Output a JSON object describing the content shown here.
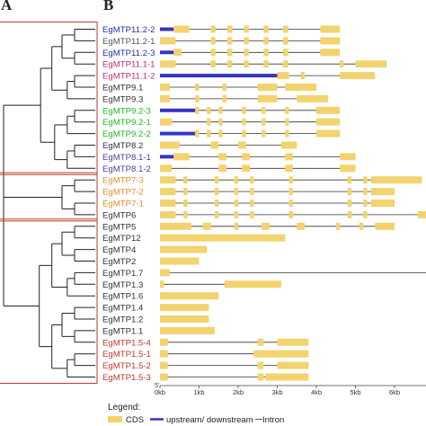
{
  "panels": {
    "a": "A",
    "b": "B"
  },
  "colors": {
    "cds": "#f3d36e",
    "utr": "#3434c4",
    "intron": "#333333",
    "clade_box": "#c0392b",
    "tree": "#222222"
  },
  "genes": [
    {
      "name": "EgMTP11.2-2",
      "color": "#2b2bb0",
      "len": 4.6,
      "features": [
        [
          "utr",
          0,
          0.35
        ],
        [
          "cds",
          0.35,
          0.75
        ],
        [
          "cds",
          1.3,
          1.42
        ],
        [
          "cds",
          1.72,
          1.85
        ],
        [
          "cds",
          2.15,
          2.27
        ],
        [
          "cds",
          2.65,
          2.78
        ],
        [
          "cds",
          3.15,
          3.28
        ],
        [
          "cds",
          4.1,
          4.6
        ]
      ]
    },
    {
      "name": "EgMTP11.2-1",
      "color": "#555555",
      "len": 4.6,
      "features": [
        [
          "cds",
          0,
          0.4
        ],
        [
          "cds",
          1.3,
          1.42
        ],
        [
          "cds",
          1.72,
          1.85
        ],
        [
          "cds",
          2.15,
          2.27
        ],
        [
          "cds",
          2.65,
          2.78
        ],
        [
          "cds",
          3.15,
          3.28
        ],
        [
          "cds",
          4.1,
          4.6
        ]
      ]
    },
    {
      "name": "EgMTP11.2-3",
      "color": "#2b2bb0",
      "len": 4.6,
      "features": [
        [
          "utr",
          0,
          0.35
        ],
        [
          "cds",
          0.35,
          0.55
        ],
        [
          "cds",
          1.3,
          1.42
        ],
        [
          "cds",
          1.72,
          1.85
        ],
        [
          "cds",
          2.15,
          2.27
        ],
        [
          "cds",
          2.65,
          2.78
        ],
        [
          "cds",
          3.15,
          3.28
        ],
        [
          "cds",
          4.1,
          4.6
        ]
      ]
    },
    {
      "name": "EgMTP11.1-1",
      "color": "#c0306a",
      "len": 5.8,
      "features": [
        [
          "cds",
          0,
          0.4
        ],
        [
          "cds",
          1.3,
          1.42
        ],
        [
          "cds",
          1.72,
          1.85
        ],
        [
          "cds",
          2.15,
          2.27
        ],
        [
          "cds",
          2.65,
          2.78
        ],
        [
          "cds",
          3.15,
          3.28
        ],
        [
          "cds",
          4.6,
          4.7
        ],
        [
          "cds",
          5.0,
          5.8
        ]
      ]
    },
    {
      "name": "EgMTP11.1-2",
      "color": "#c0306a",
      "len": 5.5,
      "features": [
        [
          "utr",
          0,
          3.0
        ],
        [
          "cds",
          3.0,
          3.3
        ],
        [
          "cds",
          3.6,
          3.7
        ],
        [
          "cds",
          4.6,
          5.5
        ]
      ]
    },
    {
      "name": "EgMTP9.1",
      "color": "#333333",
      "len": 4.0,
      "features": [
        [
          "cds",
          0,
          0.25
        ],
        [
          "cds",
          0.9,
          1.0
        ],
        [
          "cds",
          1.6,
          1.7
        ],
        [
          "cds",
          2.5,
          3.0
        ],
        [
          "cds",
          3.2,
          4.0
        ]
      ]
    },
    {
      "name": "EgMTP9.3",
      "color": "#333333",
      "len": 4.3,
      "features": [
        [
          "cds",
          0,
          0.25
        ],
        [
          "cds",
          0.9,
          1.0
        ],
        [
          "cds",
          1.6,
          1.7
        ],
        [
          "cds",
          2.5,
          3.0
        ],
        [
          "cds",
          3.5,
          4.3
        ]
      ]
    },
    {
      "name": "EgMTP9.2-3",
      "color": "#22b822",
      "len": 4.6,
      "features": [
        [
          "utr",
          0,
          0.9
        ],
        [
          "cds",
          0.9,
          1.0
        ],
        [
          "cds",
          1.2,
          1.3
        ],
        [
          "cds",
          1.5,
          1.6
        ],
        [
          "cds",
          2.1,
          2.2
        ],
        [
          "cds",
          2.6,
          2.7
        ],
        [
          "cds",
          3.2,
          3.3
        ],
        [
          "cds",
          4.0,
          4.6
        ]
      ]
    },
    {
      "name": "EgMTP9.2-1",
      "color": "#22b822",
      "len": 4.6,
      "features": [
        [
          "cds",
          0,
          0.3
        ],
        [
          "cds",
          1.2,
          1.3
        ],
        [
          "cds",
          1.5,
          1.6
        ],
        [
          "cds",
          2.1,
          2.2
        ],
        [
          "cds",
          2.6,
          2.7
        ],
        [
          "cds",
          3.2,
          3.3
        ],
        [
          "cds",
          4.0,
          4.6
        ]
      ]
    },
    {
      "name": "EgMTP9.2-2",
      "color": "#22b822",
      "len": 4.6,
      "features": [
        [
          "utr",
          0,
          0.9
        ],
        [
          "cds",
          0.9,
          1.0
        ],
        [
          "cds",
          1.2,
          1.3
        ],
        [
          "cds",
          1.5,
          1.6
        ],
        [
          "cds",
          2.1,
          2.2
        ],
        [
          "cds",
          2.6,
          2.7
        ],
        [
          "cds",
          3.2,
          3.3
        ],
        [
          "cds",
          4.0,
          4.6
        ]
      ]
    },
    {
      "name": "EgMTP8.2",
      "color": "#333333",
      "len": 3.5,
      "features": [
        [
          "cds",
          0,
          0.5
        ],
        [
          "cds",
          1.3,
          1.5
        ],
        [
          "cds",
          2.0,
          2.2
        ],
        [
          "cds",
          3.1,
          3.5
        ]
      ]
    },
    {
      "name": "EgMTP8.1-1",
      "color": "#5a3aa0",
      "len": 5.0,
      "features": [
        [
          "utr",
          0,
          0.35
        ],
        [
          "cds",
          0.35,
          0.75
        ],
        [
          "cds",
          1.5,
          1.7
        ],
        [
          "cds",
          2.1,
          2.3
        ],
        [
          "cds",
          3.2,
          3.4
        ],
        [
          "cds",
          4.6,
          5.0
        ]
      ]
    },
    {
      "name": "EgMTP8.1-2",
      "color": "#5a3aa0",
      "len": 5.0,
      "features": [
        [
          "cds",
          0,
          0.3
        ],
        [
          "cds",
          1.5,
          1.7
        ],
        [
          "cds",
          2.1,
          2.3
        ],
        [
          "cds",
          3.2,
          3.4
        ],
        [
          "cds",
          4.6,
          5.0
        ]
      ]
    },
    {
      "name": "EgMTP7-3",
      "color": "#e0902a",
      "len": 6.7,
      "features": [
        [
          "cds",
          0,
          0.4
        ],
        [
          "cds",
          0.6,
          0.7
        ],
        [
          "cds",
          1.4,
          1.5
        ],
        [
          "cds",
          1.9,
          2.0
        ],
        [
          "cds",
          2.3,
          2.4
        ],
        [
          "cds",
          3.3,
          3.4
        ],
        [
          "cds",
          4.8,
          4.9
        ],
        [
          "cds",
          5.2,
          5.3
        ],
        [
          "cds",
          5.4,
          6.7
        ]
      ]
    },
    {
      "name": "EgMTP7-2",
      "color": "#e0902a",
      "len": 6.0,
      "features": [
        [
          "cds",
          0,
          0.4
        ],
        [
          "cds",
          0.6,
          0.7
        ],
        [
          "cds",
          1.4,
          1.5
        ],
        [
          "cds",
          1.9,
          2.0
        ],
        [
          "cds",
          2.3,
          2.4
        ],
        [
          "cds",
          3.3,
          3.4
        ],
        [
          "cds",
          4.8,
          4.9
        ],
        [
          "cds",
          5.2,
          5.3
        ],
        [
          "cds",
          5.4,
          6.0
        ]
      ]
    },
    {
      "name": "EgMTP7-1",
      "color": "#e0902a",
      "len": 6.0,
      "features": [
        [
          "cds",
          0,
          0.4
        ],
        [
          "cds",
          0.6,
          0.7
        ],
        [
          "cds",
          1.4,
          1.5
        ],
        [
          "cds",
          1.9,
          2.0
        ],
        [
          "cds",
          2.3,
          2.4
        ],
        [
          "cds",
          3.3,
          3.4
        ],
        [
          "cds",
          4.8,
          4.9
        ],
        [
          "cds",
          5.2,
          5.3
        ],
        [
          "cds",
          5.4,
          6.0
        ]
      ]
    },
    {
      "name": "EgMTP6",
      "color": "#333333",
      "len": 6.9,
      "features": [
        [
          "cds",
          0,
          0.4
        ],
        [
          "cds",
          0.6,
          0.7
        ],
        [
          "cds",
          1.4,
          1.5
        ],
        [
          "cds",
          1.9,
          2.0
        ],
        [
          "cds",
          2.3,
          2.4
        ],
        [
          "cds",
          3.3,
          3.4
        ],
        [
          "cds",
          4.8,
          4.9
        ],
        [
          "cds",
          5.2,
          5.3
        ],
        [
          "cds",
          6.6,
          6.9
        ]
      ]
    },
    {
      "name": "EgMTP5",
      "color": "#333333",
      "len": 6.0,
      "features": [
        [
          "cds",
          0,
          0.8
        ],
        [
          "cds",
          1.1,
          1.3
        ],
        [
          "cds",
          1.9,
          2.0
        ],
        [
          "cds",
          2.6,
          2.8
        ],
        [
          "cds",
          3.5,
          3.7
        ],
        [
          "cds",
          4.5,
          4.6
        ],
        [
          "cds",
          5.1,
          5.2
        ],
        [
          "cds",
          5.5,
          6.0
        ]
      ]
    },
    {
      "name": "EgMTP12",
      "color": "#333333",
      "len": 3.2,
      "features": [
        [
          "cds",
          0,
          3.2
        ]
      ]
    },
    {
      "name": "EgMTP4",
      "color": "#333333",
      "len": 1.2,
      "features": [
        [
          "cds",
          0,
          1.2
        ]
      ]
    },
    {
      "name": "EgMTP2",
      "color": "#333333",
      "len": 1.0,
      "features": [
        [
          "cds",
          0,
          1.0
        ]
      ]
    },
    {
      "name": "EgMTP1.7",
      "color": "#333333",
      "len": 6.9,
      "features": [
        [
          "cds",
          0,
          0.25
        ]
      ]
    },
    {
      "name": "EgMTP1.3",
      "color": "#333333",
      "len": 3.1,
      "features": [
        [
          "cds",
          0,
          0.1
        ],
        [
          "cds",
          1.65,
          3.1
        ]
      ]
    },
    {
      "name": "EgMTP1.6",
      "color": "#333333",
      "len": 1.5,
      "features": [
        [
          "cds",
          0,
          1.5
        ]
      ]
    },
    {
      "name": "EgMTP1.4",
      "color": "#333333",
      "len": 1.25,
      "features": [
        [
          "cds",
          0,
          1.25
        ]
      ]
    },
    {
      "name": "EgMTP1.2",
      "color": "#333333",
      "len": 1.25,
      "features": [
        [
          "cds",
          0,
          1.25
        ]
      ]
    },
    {
      "name": "EgMTP1.1",
      "color": "#333333",
      "len": 1.4,
      "features": [
        [
          "cds",
          0,
          1.4
        ]
      ]
    },
    {
      "name": "EgMTP1.5-4",
      "color": "#c0392b",
      "len": 3.8,
      "features": [
        [
          "cds",
          0,
          0.2
        ],
        [
          "cds",
          2.5,
          2.65
        ],
        [
          "cds",
          3.0,
          3.8
        ]
      ]
    },
    {
      "name": "EgMTP1.5-1",
      "color": "#c0392b",
      "len": 3.8,
      "features": [
        [
          "cds",
          0,
          0.2
        ],
        [
          "cds",
          2.4,
          3.8
        ]
      ]
    },
    {
      "name": "EgMTP1.5-2",
      "color": "#c0392b",
      "len": 3.8,
      "features": [
        [
          "cds",
          0,
          0.2
        ],
        [
          "cds",
          2.5,
          2.65
        ],
        [
          "cds",
          3.0,
          3.8
        ]
      ]
    },
    {
      "name": "EgMTP1.5-3",
      "color": "#c0392b",
      "len": 3.8,
      "features": [
        [
          "cds",
          0,
          0.2
        ],
        [
          "cds",
          2.5,
          2.65
        ],
        [
          "cds",
          2.7,
          3.8
        ]
      ]
    }
  ],
  "axis": {
    "five_prime": "5'",
    "ticks": [
      {
        "value": 0,
        "label": "0kb"
      },
      {
        "value": 1,
        "label": "1kb"
      },
      {
        "value": 2,
        "label": "2kb"
      },
      {
        "value": 3,
        "label": "3kb"
      },
      {
        "value": 4,
        "label": "4kb"
      },
      {
        "value": 5,
        "label": "5kb"
      },
      {
        "value": 6,
        "label": "6kb"
      }
    ],
    "max": 6.9
  },
  "legend": {
    "title": "Legend:",
    "cds": "CDS",
    "utr": "upstream/ downstream",
    "intron": "Intron"
  },
  "tree": {
    "clades": [
      [
        0,
        12
      ],
      [
        13,
        16
      ],
      [
        17,
        30
      ]
    ],
    "boxed": [
      [
        0,
        12
      ],
      [
        13,
        16
      ],
      [
        17,
        30
      ]
    ]
  }
}
